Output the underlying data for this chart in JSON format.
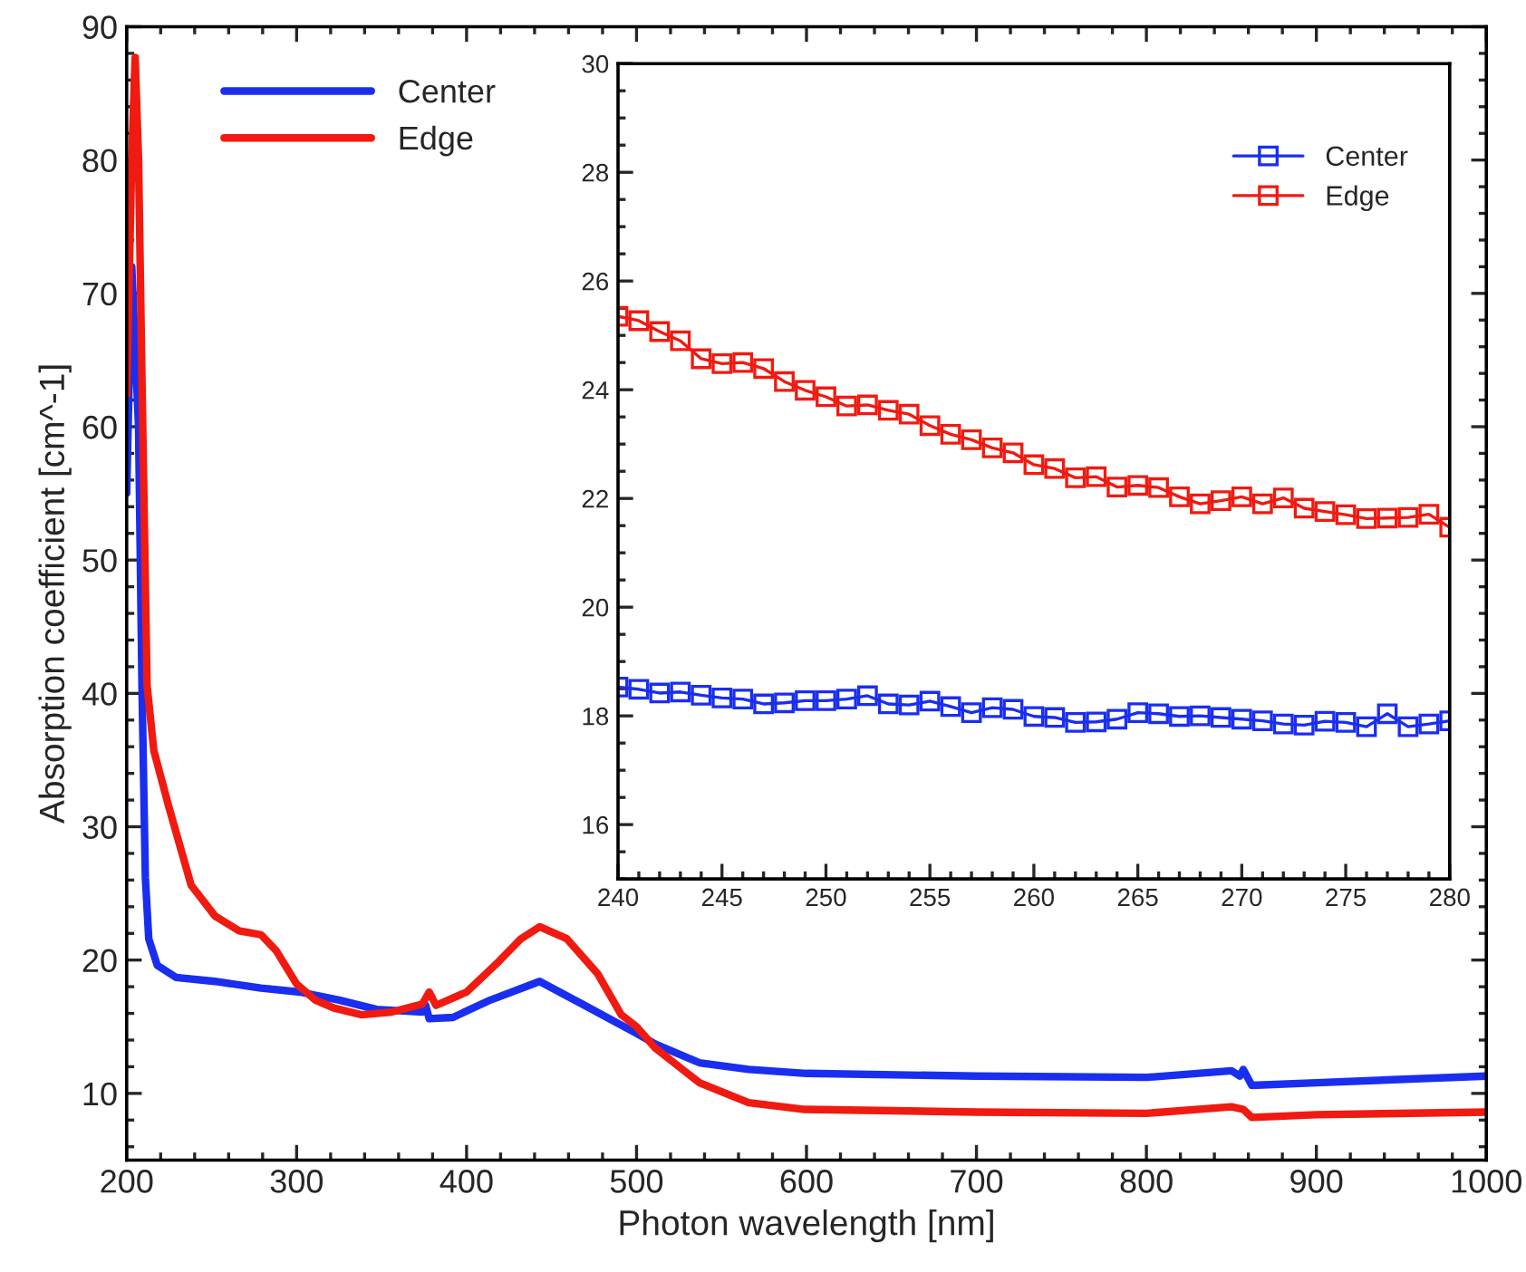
{
  "chart_data": [
    {
      "type": "line",
      "xlabel": "Photon wavelength [nm]",
      "ylabel": "Absorption coefficient [cm^-1]",
      "xlim": [
        200,
        1000
      ],
      "ylim": [
        5,
        90
      ],
      "xticks": [
        200,
        300,
        400,
        500,
        600,
        700,
        800,
        900,
        1000
      ],
      "yticks": [
        10,
        20,
        30,
        40,
        50,
        60,
        70,
        80,
        90
      ],
      "legend": "top left",
      "grid": false,
      "series": [
        {
          "name": "Center",
          "color": "#1a2ef0",
          "x": [
            200,
            203,
            207,
            209,
            211,
            213,
            218,
            229,
            252,
            279,
            302,
            325,
            347,
            374,
            376,
            378,
            392,
            414,
            443,
            468,
            500,
            511,
            537,
            566,
            600,
            700,
            800,
            850,
            855,
            857,
            862,
            900,
            1000
          ],
          "values": [
            55,
            72,
            60,
            40.6,
            26.2,
            21.6,
            19.6,
            18.7,
            18.4,
            17.9,
            17.6,
            17.0,
            16.3,
            16.1,
            16.6,
            15.6,
            15.7,
            17.0,
            18.4,
            16.7,
            14.5,
            13.7,
            12.3,
            11.8,
            11.5,
            11.3,
            11.2,
            11.7,
            11.3,
            11.8,
            10.6,
            10.8,
            11.3
          ]
        },
        {
          "name": "Edge",
          "color": "#f01a10",
          "x": [
            200,
            203,
            205,
            207,
            209,
            212,
            216,
            225,
            238,
            252,
            266,
            279,
            288,
            300,
            311,
            322,
            338,
            356,
            374,
            378,
            382,
            400,
            419,
            432,
            443,
            459,
            477,
            491,
            500,
            511,
            537,
            566,
            599,
            700,
            800,
            850,
            857,
            862,
            900,
            1000
          ],
          "values": [
            62.4,
            80,
            87.7,
            80,
            63.6,
            40.6,
            35.7,
            31.4,
            25.6,
            23.3,
            22.2,
            21.9,
            20.7,
            18.2,
            17.0,
            16.4,
            15.9,
            16.1,
            16.7,
            17.6,
            16.6,
            17.6,
            19.9,
            21.6,
            22.5,
            21.6,
            19.0,
            15.9,
            15.0,
            13.4,
            10.8,
            9.3,
            8.8,
            8.6,
            8.5,
            9.0,
            8.8,
            8.2,
            8.4,
            8.6
          ]
        }
      ]
    },
    {
      "type": "line",
      "xlim": [
        240,
        280
      ],
      "ylim": [
        15,
        30
      ],
      "xticks": [
        240,
        245,
        250,
        255,
        260,
        265,
        270,
        275,
        280
      ],
      "yticks": [
        16,
        18,
        20,
        22,
        24,
        26,
        28,
        30
      ],
      "legend": "top right",
      "marker": "square",
      "grid": false,
      "series": [
        {
          "name": "Center",
          "color": "#1a2ef0",
          "x": [
            240,
            241,
            242,
            243,
            244,
            245,
            246,
            247,
            248,
            249,
            250,
            251,
            252,
            253,
            254,
            255,
            256,
            257,
            258,
            259,
            260,
            261,
            262,
            263,
            264,
            265,
            266,
            267,
            268,
            269,
            270,
            271,
            272,
            273,
            274,
            275,
            276,
            277,
            278,
            279,
            280
          ],
          "values": [
            18.53,
            18.49,
            18.42,
            18.44,
            18.38,
            18.33,
            18.31,
            18.22,
            18.24,
            18.28,
            18.28,
            18.31,
            18.37,
            18.22,
            18.2,
            18.27,
            18.17,
            18.06,
            18.15,
            18.12,
            17.99,
            17.97,
            17.88,
            17.89,
            17.94,
            18.06,
            18.04,
            17.99,
            18.0,
            17.97,
            17.94,
            17.91,
            17.85,
            17.83,
            17.9,
            17.88,
            17.8,
            18.04,
            17.8,
            17.85,
            17.91
          ]
        },
        {
          "name": "Edge",
          "color": "#f01a10",
          "x": [
            240,
            241,
            242,
            243,
            244,
            245,
            246,
            247,
            248,
            249,
            250,
            251,
            252,
            253,
            254,
            255,
            256,
            257,
            258,
            259,
            260,
            261,
            262,
            263,
            264,
            265,
            266,
            267,
            268,
            269,
            270,
            271,
            272,
            273,
            274,
            275,
            276,
            277,
            278,
            279,
            280
          ],
          "values": [
            25.35,
            25.27,
            25.07,
            24.9,
            24.57,
            24.48,
            24.5,
            24.39,
            24.15,
            23.99,
            23.87,
            23.7,
            23.72,
            23.62,
            23.55,
            23.34,
            23.18,
            23.08,
            22.93,
            22.84,
            22.62,
            22.55,
            22.38,
            22.4,
            22.21,
            22.24,
            22.2,
            22.03,
            21.9,
            21.96,
            22.03,
            21.9,
            22.01,
            21.82,
            21.76,
            21.7,
            21.63,
            21.64,
            21.65,
            21.71,
            21.47
          ]
        }
      ]
    }
  ]
}
